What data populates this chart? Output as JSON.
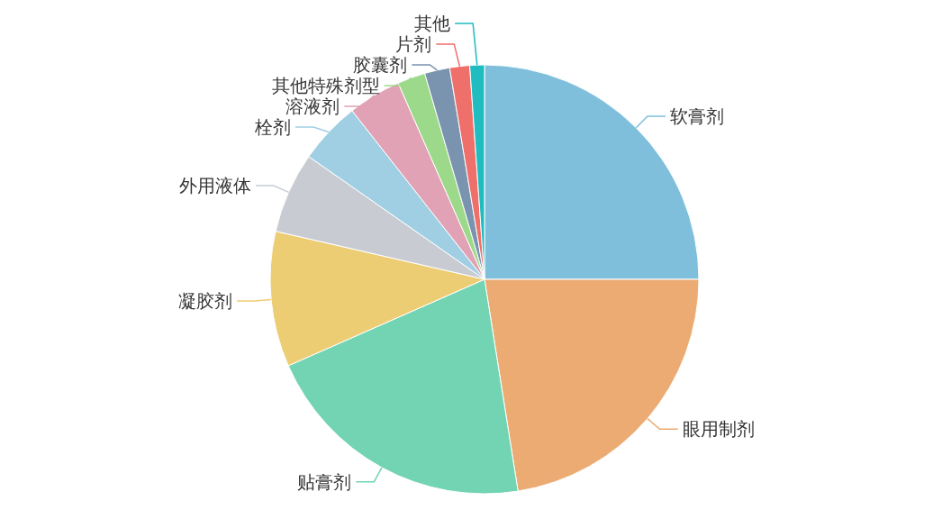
{
  "chart_data": {
    "type": "pie",
    "categories": [
      "软膏剂",
      "眼用制剂",
      "贴膏剂",
      "凝胶剂",
      "外用液体",
      "栓剂",
      "溶液剂",
      "其他特殊剂型",
      "胶囊剂",
      "片剂",
      "其他"
    ],
    "values": [
      25,
      22.5,
      20.9,
      10.2,
      6.1,
      4.7,
      4.0,
      2.1,
      1.9,
      1.5,
      1.1
    ],
    "colors": [
      "#7fbfdc",
      "#ebab72",
      "#73d4b4",
      "#edcd74",
      "#c8ccd2",
      "#a0cfe4",
      "#e0a2b4",
      "#9cd98a",
      "#7a93ae",
      "#ef6f6a",
      "#1fbcc0"
    ],
    "legend": false
  }
}
